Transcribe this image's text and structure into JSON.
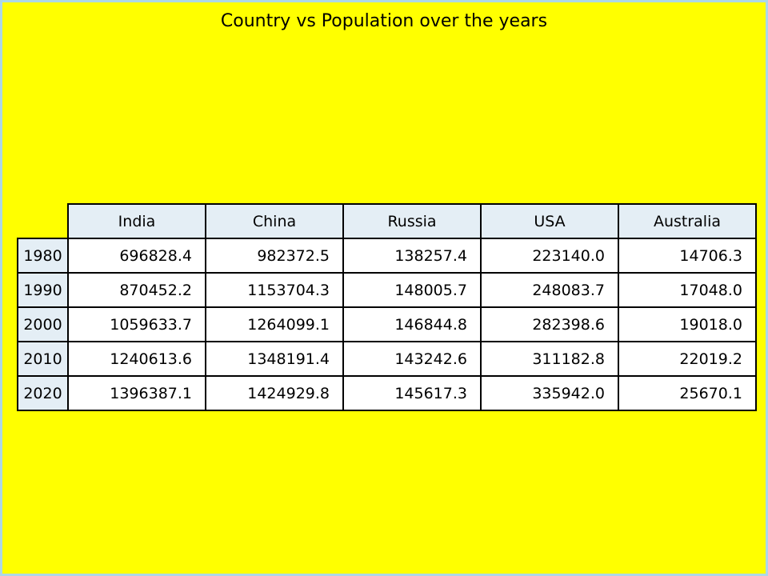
{
  "chart_data": {
    "type": "table",
    "title": "Country vs Population over the years",
    "columns": [
      "India",
      "China",
      "Russia",
      "USA",
      "Australia"
    ],
    "rows": [
      "1980",
      "1990",
      "2000",
      "2010",
      "2020"
    ],
    "cells": [
      [
        "696828.4",
        "982372.5",
        "138257.4",
        "223140.0",
        "14706.3"
      ],
      [
        "870452.2",
        "1153704.3",
        "148005.7",
        "248083.7",
        "17048.0"
      ],
      [
        "1059633.7",
        "1264099.1",
        "146844.8",
        "282398.6",
        "19018.0"
      ],
      [
        "1240613.6",
        "1348191.4",
        "143242.6",
        "311182.8",
        "22019.2"
      ],
      [
        "1396387.1",
        "1424929.8",
        "145617.3",
        "335942.0",
        "25670.1"
      ]
    ],
    "colors": {
      "background": "#ffff00",
      "border": "#add8e6",
      "header_fill": "#e4eef5",
      "cell_fill": "#ffffff"
    }
  }
}
